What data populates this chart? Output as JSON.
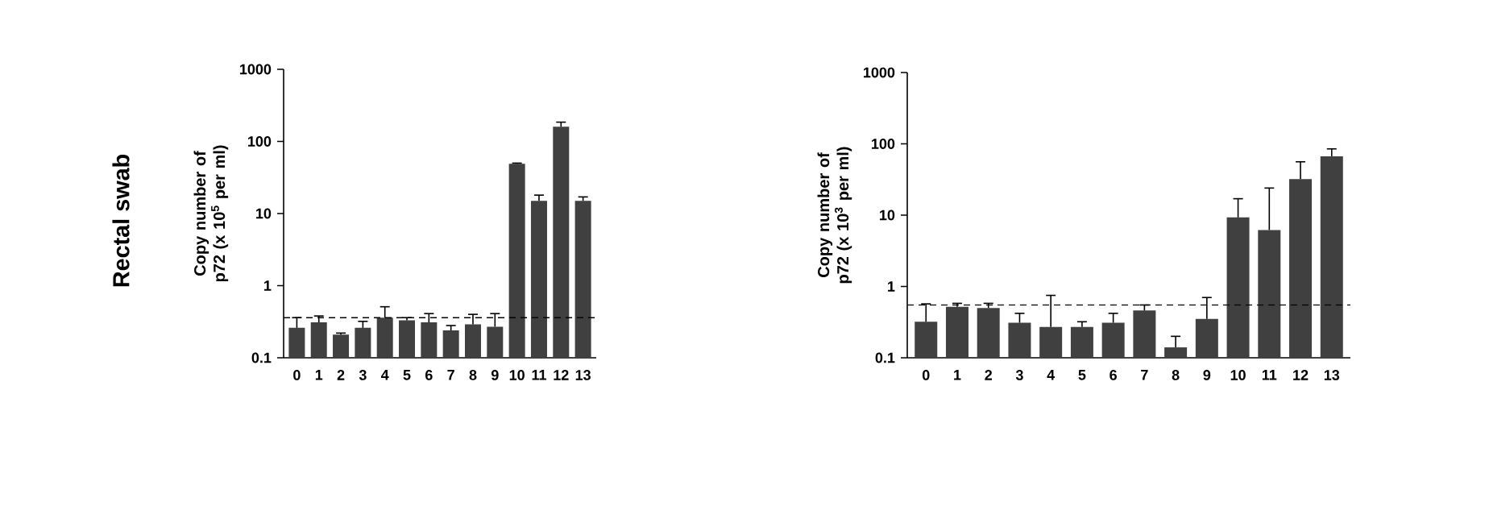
{
  "chart_data": [
    {
      "type": "bar",
      "annotations": [
        "Rectal swab"
      ],
      "ylabel": "Copy number of p72 (x 10$^{5}$ per ml)",
      "color": "#404040",
      "categories": [
        "0",
        "1",
        "2",
        "3",
        "4",
        "5",
        "6",
        "7",
        "8",
        "9",
        "10",
        "11",
        "12",
        "13"
      ],
      "values": [
        0.26,
        0.31,
        0.21,
        0.26,
        0.36,
        0.33,
        0.31,
        0.24,
        0.29,
        0.27,
        49,
        15,
        160,
        15
      ],
      "errors": [
        [
          0.26,
          0.36
        ],
        [
          0.31,
          0.38
        ],
        [
          0.21,
          0.22
        ],
        [
          0.26,
          0.32
        ],
        [
          0.36,
          0.51
        ],
        [
          0.33,
          0.36
        ],
        [
          0.31,
          0.41
        ],
        [
          0.24,
          0.28
        ],
        [
          0.29,
          0.4
        ],
        [
          0.27,
          0.41
        ],
        [
          49,
          50
        ],
        [
          15,
          18
        ],
        [
          160,
          185
        ],
        [
          15,
          17
        ]
      ],
      "log": "y",
      "ylim": [
        0.1,
        1000
      ],
      "yticks": [
        0.1,
        1,
        10,
        100,
        1000
      ],
      "grid": false,
      "ref_lines": [
        {
          "axis": "y",
          "value": 0.36,
          "line_style": "dashed",
          "color": "#000000"
        }
      ]
    },
    {
      "type": "bar",
      "ylabel": "Copy number of p72 (x 10$^{3}$ per ml)",
      "color": "#404040",
      "categories": [
        "0",
        "1",
        "2",
        "3",
        "4",
        "5",
        "6",
        "7",
        "8",
        "9",
        "10",
        "11",
        "12",
        "13"
      ],
      "values": [
        0.32,
        0.52,
        0.5,
        0.31,
        0.27,
        0.27,
        0.31,
        0.46,
        0.14,
        0.35,
        9.3,
        6.2,
        32,
        67
      ],
      "errors": [
        [
          0.32,
          0.57
        ],
        [
          0.52,
          0.58
        ],
        [
          0.5,
          0.58
        ],
        [
          0.31,
          0.42
        ],
        [
          0.27,
          0.75
        ],
        [
          0.27,
          0.32
        ],
        [
          0.31,
          0.42
        ],
        [
          0.46,
          0.55
        ],
        [
          0.14,
          0.2
        ],
        [
          0.35,
          0.7
        ],
        [
          9.3,
          17
        ],
        [
          6.2,
          24
        ],
        [
          32,
          56
        ],
        [
          67,
          85
        ]
      ],
      "log": "y",
      "ylim": [
        0.1,
        1000
      ],
      "yticks": [
        0.1,
        1,
        10,
        100,
        1000
      ],
      "grid": false,
      "ref_lines": [
        {
          "axis": "y",
          "value": 0.55,
          "line_style": "dashed",
          "color": "#000000"
        }
      ]
    }
  ]
}
